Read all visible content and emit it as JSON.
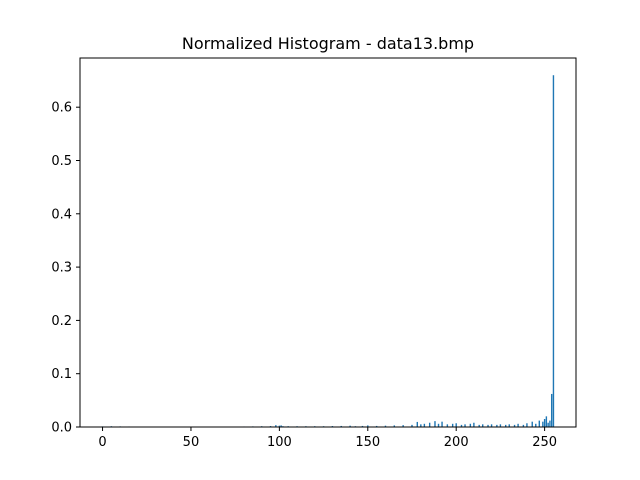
{
  "chart_data": {
    "type": "bar",
    "title": "Normalized Histogram - data13.bmp",
    "xlabel": "",
    "ylabel": "",
    "xlim": [
      -12.75,
      267.75
    ],
    "ylim": [
      0,
      0.6923
    ],
    "xticks": [
      0,
      50,
      100,
      150,
      200,
      250
    ],
    "yticks": [
      0.0,
      0.1,
      0.2,
      0.3,
      0.4,
      0.5,
      0.6
    ],
    "ytick_labels": [
      "0.0",
      "0.1",
      "0.2",
      "0.3",
      "0.4",
      "0.5",
      "0.6"
    ],
    "grid": false,
    "bar_color": "#1f77b4",
    "series": [
      {
        "x": [
          0,
          5,
          10,
          15,
          20,
          25,
          30,
          50,
          70,
          80,
          85,
          90,
          95,
          98,
          100,
          101,
          102,
          105,
          110,
          115,
          120,
          125,
          130,
          135,
          140,
          143,
          147,
          150,
          155,
          160,
          165,
          170,
          175,
          178,
          180,
          182,
          185,
          188,
          190,
          192,
          195,
          198,
          200,
          203,
          205,
          208,
          210,
          213,
          215,
          218,
          220,
          223,
          225,
          228,
          230,
          233,
          235,
          238,
          240,
          243,
          245,
          247,
          249,
          250,
          251,
          252,
          253,
          254,
          255
        ],
        "values": [
          0.0012,
          0.0015,
          0.0012,
          0.001,
          0.0008,
          0.0006,
          0.0006,
          0.0004,
          0.0008,
          0.001,
          0.0012,
          0.0015,
          0.0018,
          0.0035,
          0.0025,
          0.003,
          0.0015,
          0.0015,
          0.0015,
          0.0015,
          0.0015,
          0.0015,
          0.0018,
          0.002,
          0.0025,
          0.0015,
          0.002,
          0.003,
          0.002,
          0.0025,
          0.003,
          0.0035,
          0.004,
          0.0095,
          0.005,
          0.006,
          0.008,
          0.011,
          0.006,
          0.01,
          0.005,
          0.006,
          0.007,
          0.004,
          0.005,
          0.006,
          0.008,
          0.004,
          0.005,
          0.004,
          0.005,
          0.004,
          0.005,
          0.004,
          0.005,
          0.004,
          0.006,
          0.004,
          0.007,
          0.01,
          0.006,
          0.012,
          0.01,
          0.015,
          0.02,
          0.008,
          0.012,
          0.062,
          0.66
        ]
      }
    ]
  }
}
